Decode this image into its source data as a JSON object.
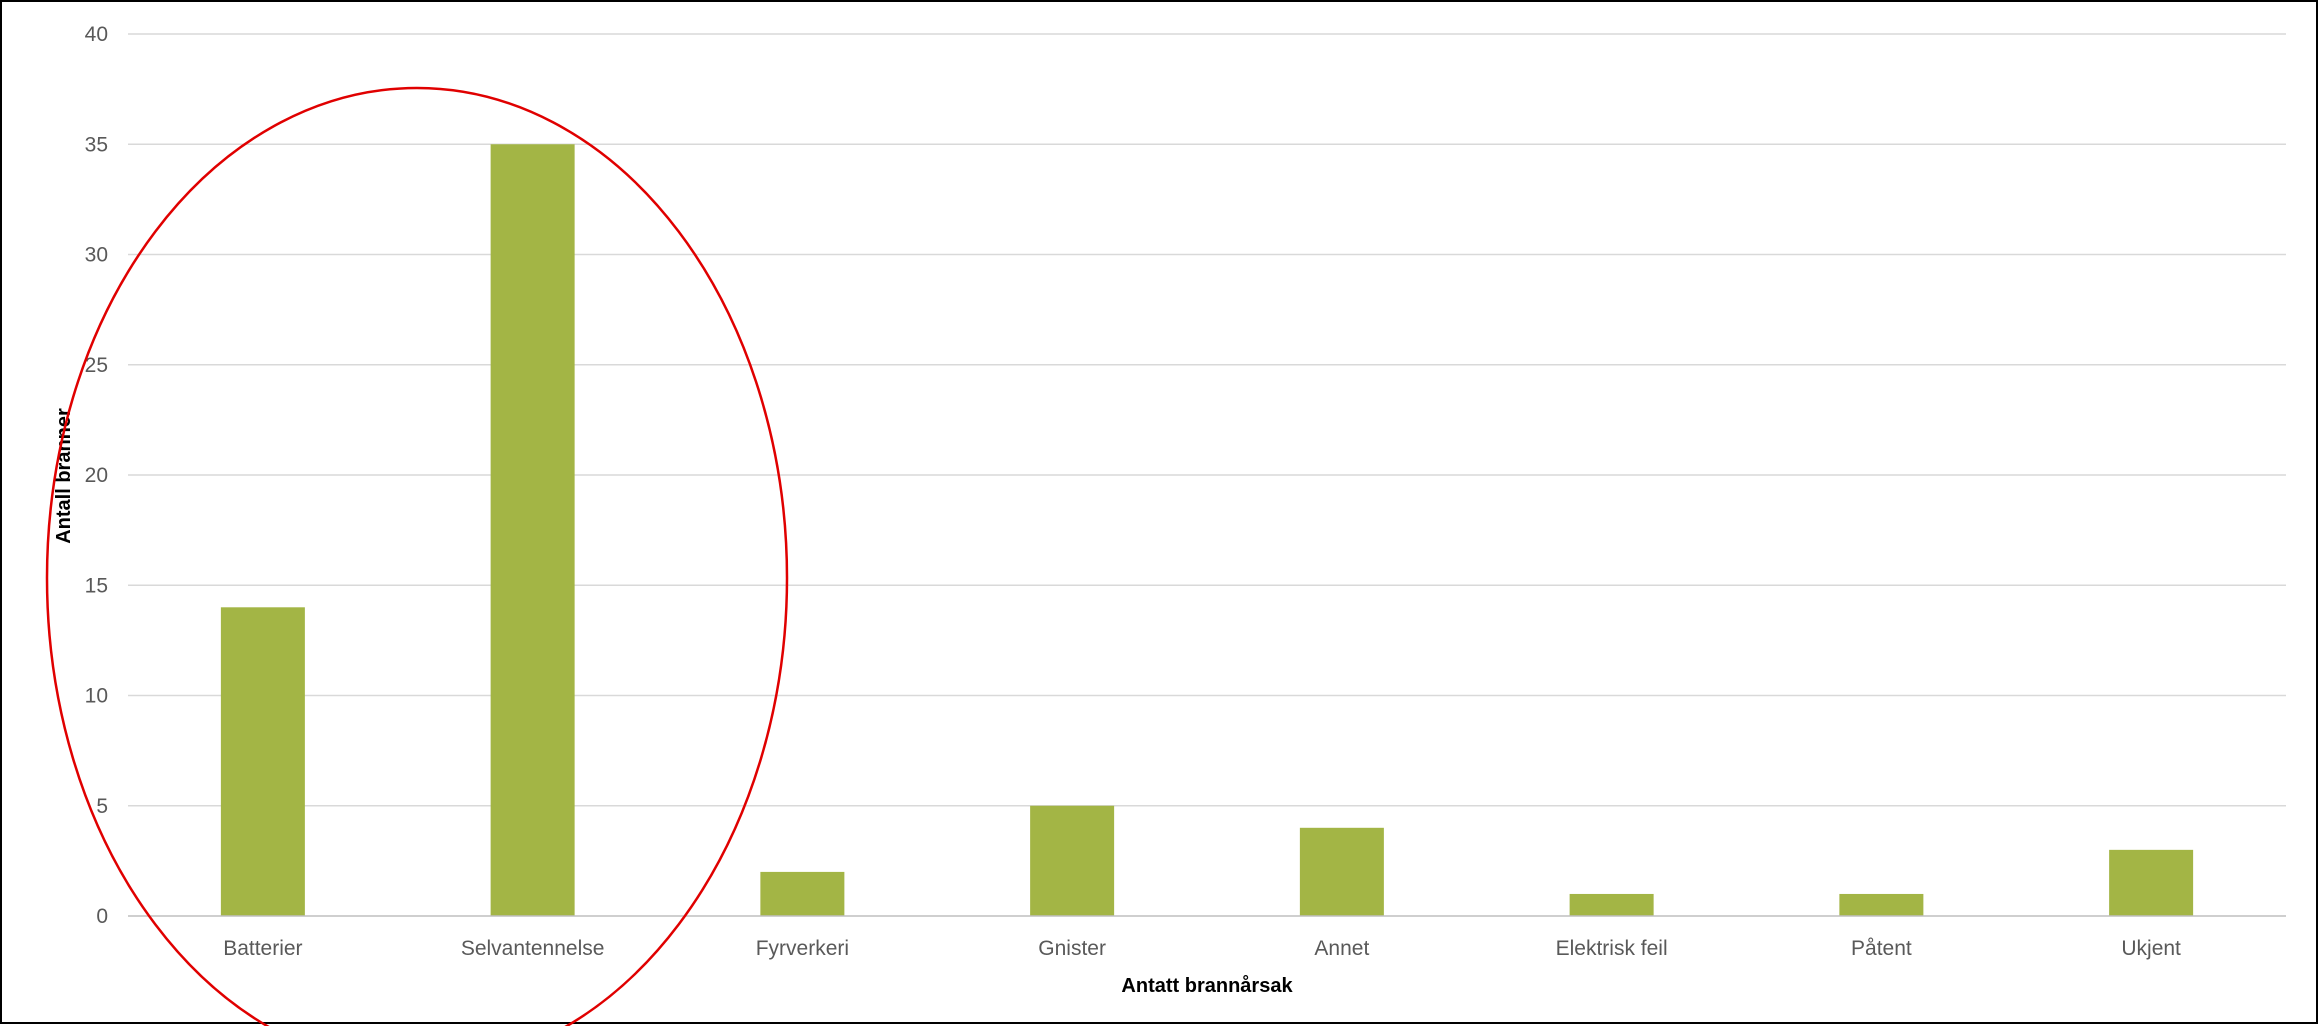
{
  "chart_data": {
    "type": "bar",
    "title": "",
    "xlabel": "Antatt brannårsak",
    "ylabel": "Antall branner",
    "categories": [
      "Batterier",
      "Selvantennelse",
      "Fyrverkeri",
      "Gnister",
      "Annet",
      "Elektrisk feil",
      "Påtent",
      "Ukjent"
    ],
    "values": [
      14,
      35,
      2,
      5,
      4,
      1,
      1,
      3
    ],
    "ylim": [
      0,
      40
    ],
    "yticks": [
      0,
      5,
      10,
      15,
      20,
      25,
      30,
      35,
      40
    ],
    "grid": true,
    "legend": "none",
    "bar_color": "#A3B545",
    "grid_color": "#D9D9D9",
    "annotation": {
      "shape": "ellipse",
      "color": "#E00000",
      "encloses": [
        "Batterier",
        "Selvantennelse"
      ]
    }
  }
}
